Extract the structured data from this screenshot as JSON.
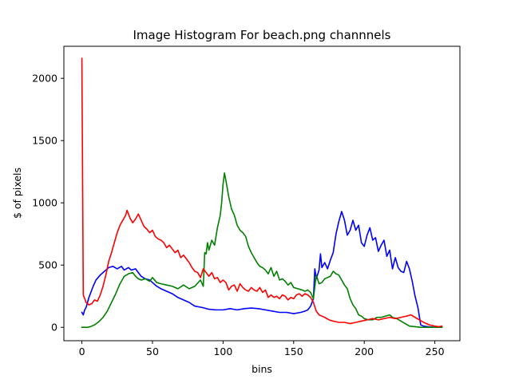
{
  "chart_data": {
    "type": "line",
    "title": "Image Histogram For beach.png channnels",
    "xlabel": "bins",
    "ylabel": "$ of pixels",
    "xlim": [
      -12.75,
      267.75
    ],
    "ylim": [
      -107.5,
      2257.5
    ],
    "xticks": [
      0,
      50,
      100,
      150,
      200,
      250
    ],
    "yticks": [
      0,
      500,
      1000,
      1500,
      2000
    ],
    "grid": false,
    "legend": "none",
    "series": [
      {
        "color": "#0000ff",
        "points": [
          [
            0,
            120
          ],
          [
            1,
            100
          ],
          [
            2,
            140
          ],
          [
            3,
            160
          ],
          [
            5,
            240
          ],
          [
            8,
            330
          ],
          [
            10,
            380
          ],
          [
            13,
            420
          ],
          [
            16,
            450
          ],
          [
            19,
            480
          ],
          [
            22,
            490
          ],
          [
            25,
            470
          ],
          [
            28,
            490
          ],
          [
            30,
            460
          ],
          [
            33,
            480
          ],
          [
            35,
            460
          ],
          [
            38,
            470
          ],
          [
            40,
            440
          ],
          [
            42,
            410
          ],
          [
            45,
            390
          ],
          [
            48,
            380
          ],
          [
            50,
            360
          ],
          [
            53,
            330
          ],
          [
            56,
            310
          ],
          [
            60,
            290
          ],
          [
            64,
            270
          ],
          [
            68,
            240
          ],
          [
            72,
            220
          ],
          [
            76,
            200
          ],
          [
            80,
            170
          ],
          [
            85,
            160
          ],
          [
            90,
            145
          ],
          [
            95,
            140
          ],
          [
            100,
            140
          ],
          [
            105,
            150
          ],
          [
            110,
            140
          ],
          [
            115,
            150
          ],
          [
            120,
            155
          ],
          [
            125,
            150
          ],
          [
            130,
            140
          ],
          [
            135,
            130
          ],
          [
            140,
            120
          ],
          [
            145,
            120
          ],
          [
            150,
            110
          ],
          [
            155,
            120
          ],
          [
            158,
            130
          ],
          [
            160,
            140
          ],
          [
            162,
            170
          ],
          [
            164,
            230
          ],
          [
            165,
            470
          ],
          [
            166,
            390
          ],
          [
            168,
            460
          ],
          [
            169,
            590
          ],
          [
            170,
            480
          ],
          [
            172,
            520
          ],
          [
            174,
            470
          ],
          [
            176,
            540
          ],
          [
            178,
            600
          ],
          [
            180,
            750
          ],
          [
            182,
            850
          ],
          [
            184,
            930
          ],
          [
            186,
            860
          ],
          [
            188,
            740
          ],
          [
            190,
            780
          ],
          [
            192,
            860
          ],
          [
            194,
            780
          ],
          [
            196,
            820
          ],
          [
            198,
            680
          ],
          [
            200,
            650
          ],
          [
            202,
            740
          ],
          [
            204,
            800
          ],
          [
            206,
            700
          ],
          [
            208,
            720
          ],
          [
            210,
            610
          ],
          [
            212,
            660
          ],
          [
            214,
            700
          ],
          [
            216,
            570
          ],
          [
            218,
            620
          ],
          [
            220,
            470
          ],
          [
            222,
            560
          ],
          [
            224,
            480
          ],
          [
            226,
            450
          ],
          [
            228,
            440
          ],
          [
            230,
            530
          ],
          [
            232,
            470
          ],
          [
            234,
            370
          ],
          [
            236,
            250
          ],
          [
            238,
            160
          ],
          [
            240,
            20
          ],
          [
            242,
            10
          ],
          [
            245,
            5
          ],
          [
            250,
            0
          ],
          [
            255,
            0
          ]
        ]
      },
      {
        "color": "#008000",
        "points": [
          [
            0,
            0
          ],
          [
            4,
            0
          ],
          [
            6,
            5
          ],
          [
            9,
            20
          ],
          [
            12,
            45
          ],
          [
            15,
            80
          ],
          [
            18,
            130
          ],
          [
            21,
            200
          ],
          [
            24,
            270
          ],
          [
            27,
            350
          ],
          [
            30,
            410
          ],
          [
            33,
            430
          ],
          [
            36,
            440
          ],
          [
            38,
            410
          ],
          [
            40,
            390
          ],
          [
            42,
            380
          ],
          [
            45,
            390
          ],
          [
            48,
            370
          ],
          [
            50,
            400
          ],
          [
            53,
            360
          ],
          [
            56,
            350
          ],
          [
            60,
            340
          ],
          [
            64,
            330
          ],
          [
            68,
            310
          ],
          [
            72,
            340
          ],
          [
            76,
            310
          ],
          [
            80,
            330
          ],
          [
            84,
            380
          ],
          [
            86,
            330
          ],
          [
            87,
            600
          ],
          [
            88,
            590
          ],
          [
            89,
            680
          ],
          [
            90,
            620
          ],
          [
            92,
            700
          ],
          [
            94,
            660
          ],
          [
            96,
            800
          ],
          [
            98,
            900
          ],
          [
            99,
            1000
          ],
          [
            100,
            1150
          ],
          [
            101,
            1240
          ],
          [
            102,
            1180
          ],
          [
            104,
            1050
          ],
          [
            106,
            950
          ],
          [
            108,
            900
          ],
          [
            110,
            820
          ],
          [
            112,
            780
          ],
          [
            114,
            760
          ],
          [
            116,
            730
          ],
          [
            118,
            650
          ],
          [
            120,
            600
          ],
          [
            122,
            560
          ],
          [
            124,
            520
          ],
          [
            126,
            490
          ],
          [
            128,
            480
          ],
          [
            130,
            460
          ],
          [
            132,
            430
          ],
          [
            134,
            480
          ],
          [
            136,
            410
          ],
          [
            138,
            450
          ],
          [
            140,
            380
          ],
          [
            142,
            390
          ],
          [
            144,
            370
          ],
          [
            146,
            340
          ],
          [
            148,
            360
          ],
          [
            150,
            320
          ],
          [
            153,
            310
          ],
          [
            156,
            300
          ],
          [
            158,
            290
          ],
          [
            160,
            300
          ],
          [
            162,
            280
          ],
          [
            164,
            230
          ],
          [
            166,
            420
          ],
          [
            168,
            350
          ],
          [
            170,
            360
          ],
          [
            172,
            390
          ],
          [
            174,
            400
          ],
          [
            176,
            410
          ],
          [
            178,
            450
          ],
          [
            180,
            430
          ],
          [
            182,
            420
          ],
          [
            184,
            380
          ],
          [
            186,
            340
          ],
          [
            188,
            310
          ],
          [
            190,
            230
          ],
          [
            192,
            180
          ],
          [
            194,
            150
          ],
          [
            196,
            100
          ],
          [
            198,
            90
          ],
          [
            200,
            70
          ],
          [
            203,
            60
          ],
          [
            206,
            60
          ],
          [
            209,
            80
          ],
          [
            212,
            80
          ],
          [
            215,
            90
          ],
          [
            218,
            100
          ],
          [
            220,
            80
          ],
          [
            223,
            70
          ],
          [
            226,
            50
          ],
          [
            229,
            30
          ],
          [
            232,
            10
          ],
          [
            236,
            5
          ],
          [
            240,
            0
          ],
          [
            255,
            0
          ]
        ]
      },
      {
        "color": "#ff0000",
        "points": [
          [
            0,
            2160
          ],
          [
            1,
            260
          ],
          [
            3,
            200
          ],
          [
            5,
            180
          ],
          [
            7,
            190
          ],
          [
            9,
            220
          ],
          [
            11,
            210
          ],
          [
            13,
            260
          ],
          [
            15,
            330
          ],
          [
            17,
            420
          ],
          [
            19,
            530
          ],
          [
            21,
            600
          ],
          [
            23,
            680
          ],
          [
            25,
            760
          ],
          [
            27,
            820
          ],
          [
            29,
            860
          ],
          [
            31,
            900
          ],
          [
            32,
            940
          ],
          [
            34,
            880
          ],
          [
            36,
            840
          ],
          [
            38,
            870
          ],
          [
            40,
            910
          ],
          [
            42,
            860
          ],
          [
            44,
            810
          ],
          [
            46,
            790
          ],
          [
            48,
            760
          ],
          [
            50,
            780
          ],
          [
            52,
            730
          ],
          [
            54,
            710
          ],
          [
            56,
            700
          ],
          [
            58,
            680
          ],
          [
            60,
            640
          ],
          [
            62,
            660
          ],
          [
            64,
            630
          ],
          [
            66,
            600
          ],
          [
            68,
            620
          ],
          [
            70,
            560
          ],
          [
            72,
            580
          ],
          [
            74,
            550
          ],
          [
            76,
            520
          ],
          [
            78,
            480
          ],
          [
            80,
            450
          ],
          [
            82,
            440
          ],
          [
            84,
            400
          ],
          [
            86,
            470
          ],
          [
            88,
            440
          ],
          [
            90,
            410
          ],
          [
            92,
            440
          ],
          [
            94,
            390
          ],
          [
            96,
            400
          ],
          [
            98,
            360
          ],
          [
            100,
            380
          ],
          [
            102,
            360
          ],
          [
            104,
            300
          ],
          [
            106,
            330
          ],
          [
            108,
            340
          ],
          [
            110,
            290
          ],
          [
            112,
            350
          ],
          [
            114,
            320
          ],
          [
            116,
            300
          ],
          [
            118,
            290
          ],
          [
            120,
            320
          ],
          [
            122,
            300
          ],
          [
            124,
            290
          ],
          [
            126,
            320
          ],
          [
            128,
            280
          ],
          [
            130,
            300
          ],
          [
            132,
            240
          ],
          [
            134,
            260
          ],
          [
            136,
            240
          ],
          [
            138,
            250
          ],
          [
            140,
            230
          ],
          [
            142,
            260
          ],
          [
            144,
            250
          ],
          [
            146,
            220
          ],
          [
            148,
            240
          ],
          [
            150,
            230
          ],
          [
            152,
            260
          ],
          [
            154,
            270
          ],
          [
            156,
            250
          ],
          [
            158,
            270
          ],
          [
            160,
            260
          ],
          [
            162,
            240
          ],
          [
            164,
            200
          ],
          [
            166,
            130
          ],
          [
            168,
            100
          ],
          [
            170,
            90
          ],
          [
            172,
            80
          ],
          [
            175,
            60
          ],
          [
            178,
            50
          ],
          [
            182,
            40
          ],
          [
            186,
            40
          ],
          [
            190,
            30
          ],
          [
            194,
            40
          ],
          [
            198,
            50
          ],
          [
            202,
            60
          ],
          [
            206,
            70
          ],
          [
            210,
            60
          ],
          [
            214,
            70
          ],
          [
            218,
            80
          ],
          [
            222,
            70
          ],
          [
            226,
            80
          ],
          [
            230,
            90
          ],
          [
            233,
            100
          ],
          [
            236,
            80
          ],
          [
            239,
            60
          ],
          [
            242,
            40
          ],
          [
            246,
            20
          ],
          [
            250,
            10
          ],
          [
            253,
            5
          ],
          [
            255,
            10
          ]
        ]
      }
    ]
  }
}
